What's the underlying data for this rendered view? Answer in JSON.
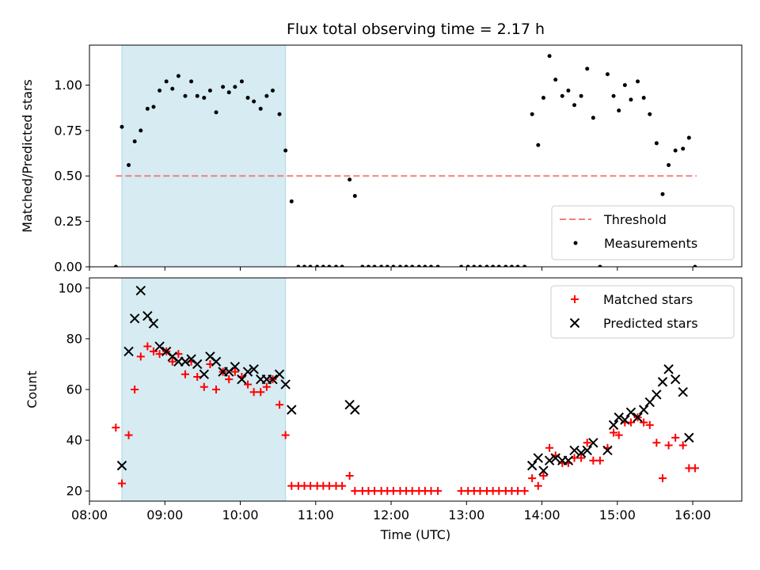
{
  "chart_data": [
    {
      "type": "scatter",
      "title": "Flux total observing time = 2.17 h",
      "xlabel": "",
      "ylabel": "Matched/Predicted stars",
      "xlim": [
        8.0,
        16.65
      ],
      "ylim": [
        0.0,
        1.22
      ],
      "yticks": [
        0.0,
        0.25,
        0.5,
        0.75,
        1.0
      ],
      "ytick_labels": [
        "0.00",
        "0.25",
        "0.50",
        "0.75",
        "1.00"
      ],
      "shaded_region": {
        "x0": 8.43,
        "x1": 10.6,
        "color": "#add8e6"
      },
      "threshold": {
        "name": "Threshold",
        "value": 0.5,
        "x0": 8.35,
        "x1": 16.05,
        "color": "#f08080"
      },
      "series": [
        {
          "name": "Measurements",
          "marker": "dot",
          "color": "#000000",
          "x": [
            8.35,
            8.43,
            8.52,
            8.6,
            8.68,
            8.77,
            8.85,
            8.93,
            9.02,
            9.1,
            9.18,
            9.27,
            9.35,
            9.43,
            9.52,
            9.6,
            9.68,
            9.77,
            9.85,
            9.93,
            10.02,
            10.1,
            10.18,
            10.27,
            10.35,
            10.43,
            10.52,
            10.6,
            10.68,
            10.77,
            10.85,
            10.93,
            11.02,
            11.1,
            11.18,
            11.27,
            11.35,
            11.45,
            11.52,
            11.62,
            11.7,
            11.78,
            11.87,
            11.95,
            12.03,
            12.12,
            12.2,
            12.28,
            12.37,
            12.45,
            12.53,
            12.62,
            12.93,
            13.02,
            13.1,
            13.18,
            13.27,
            13.35,
            13.43,
            13.52,
            13.6,
            13.68,
            13.77,
            13.87,
            13.95,
            14.02,
            14.1,
            14.18,
            14.27,
            14.35,
            14.43,
            14.52,
            14.6,
            14.68,
            14.77,
            14.87,
            14.95,
            15.02,
            15.1,
            15.18,
            15.27,
            15.35,
            15.43,
            15.52,
            15.6,
            15.68,
            15.77,
            15.87,
            15.95,
            16.03
          ],
          "y": [
            0.0,
            0.77,
            0.56,
            0.69,
            0.75,
            0.87,
            0.88,
            0.97,
            1.02,
            0.98,
            1.05,
            0.94,
            1.02,
            0.94,
            0.93,
            0.97,
            0.85,
            0.99,
            0.96,
            0.99,
            1.02,
            0.93,
            0.91,
            0.87,
            0.94,
            0.97,
            0.84,
            0.64,
            0.36,
            0.0,
            0.0,
            0.0,
            0.0,
            0.0,
            0.0,
            0.0,
            0.0,
            0.48,
            0.39,
            0.0,
            0.0,
            0.0,
            0.0,
            0.0,
            0.0,
            0.0,
            0.0,
            0.0,
            0.0,
            0.0,
            0.0,
            0.0,
            0.0,
            0.0,
            0.0,
            0.0,
            0.0,
            0.0,
            0.0,
            0.0,
            0.0,
            0.0,
            0.0,
            0.84,
            0.67,
            0.93,
            1.16,
            1.03,
            0.94,
            0.97,
            0.89,
            0.94,
            1.09,
            0.82,
            0.0,
            1.06,
            0.94,
            0.86,
            1.0,
            0.92,
            1.02,
            0.93,
            0.84,
            0.68,
            0.4,
            0.56,
            0.64,
            0.65,
            0.71,
            0.0
          ]
        }
      ],
      "legend": {
        "position": "lower right",
        "entries": [
          "Threshold",
          "Measurements"
        ]
      }
    },
    {
      "type": "scatter",
      "title": "",
      "xlabel": "Time (UTC)",
      "ylabel": "Count",
      "xlim": [
        8.0,
        16.65
      ],
      "ylim": [
        16,
        104
      ],
      "yticks": [
        20,
        40,
        60,
        80,
        100
      ],
      "ytick_labels": [
        "20",
        "40",
        "60",
        "80",
        "100"
      ],
      "xticks": [
        8,
        9,
        10,
        11,
        12,
        13,
        14,
        15,
        16
      ],
      "xtick_labels": [
        "08:00",
        "09:00",
        "10:00",
        "11:00",
        "12:00",
        "13:00",
        "14:00",
        "15:00",
        "16:00"
      ],
      "shaded_region": {
        "x0": 8.43,
        "x1": 10.6,
        "color": "#add8e6"
      },
      "series": [
        {
          "name": "Matched stars",
          "marker": "plus",
          "color": "#ff0000",
          "x": [
            8.35,
            8.43,
            8.52,
            8.6,
            8.68,
            8.77,
            8.85,
            8.93,
            9.02,
            9.1,
            9.18,
            9.27,
            9.35,
            9.43,
            9.52,
            9.6,
            9.68,
            9.77,
            9.85,
            9.93,
            10.02,
            10.1,
            10.18,
            10.27,
            10.35,
            10.43,
            10.52,
            10.6,
            10.68,
            10.77,
            10.85,
            10.93,
            11.02,
            11.1,
            11.18,
            11.27,
            11.35,
            11.45,
            11.52,
            11.62,
            11.7,
            11.78,
            11.87,
            11.95,
            12.03,
            12.12,
            12.2,
            12.28,
            12.37,
            12.45,
            12.53,
            12.62,
            12.93,
            13.02,
            13.1,
            13.18,
            13.27,
            13.35,
            13.43,
            13.52,
            13.6,
            13.68,
            13.77,
            13.87,
            13.95,
            14.02,
            14.1,
            14.18,
            14.27,
            14.35,
            14.43,
            14.52,
            14.6,
            14.68,
            14.77,
            14.87,
            14.95,
            15.02,
            15.1,
            15.18,
            15.27,
            15.35,
            15.43,
            15.52,
            15.6,
            15.68,
            15.77,
            15.87,
            15.95,
            16.03
          ],
          "y": [
            45,
            23,
            42,
            60,
            73,
            77,
            75,
            74,
            75,
            71,
            74,
            66,
            71,
            65,
            61,
            70,
            60,
            67,
            64,
            67,
            65,
            62,
            59,
            59,
            61,
            64,
            54,
            42,
            22,
            22,
            22,
            22,
            22,
            22,
            22,
            22,
            22,
            26,
            20,
            20,
            20,
            20,
            20,
            20,
            20,
            20,
            20,
            20,
            20,
            20,
            20,
            20,
            20,
            20,
            20,
            20,
            20,
            20,
            20,
            20,
            20,
            20,
            20,
            25,
            22,
            26,
            37,
            34,
            31,
            31,
            33,
            33,
            39,
            32,
            32,
            37,
            43,
            42,
            47,
            47,
            49,
            47,
            46,
            39,
            25,
            38,
            41,
            38,
            29,
            29
          ]
        },
        {
          "name": "Predicted stars",
          "marker": "x",
          "color": "#000000",
          "x": [
            8.43,
            8.52,
            8.6,
            8.68,
            8.77,
            8.85,
            8.93,
            9.02,
            9.1,
            9.18,
            9.27,
            9.35,
            9.43,
            9.52,
            9.6,
            9.68,
            9.77,
            9.85,
            9.93,
            10.02,
            10.1,
            10.18,
            10.27,
            10.35,
            10.43,
            10.52,
            10.6,
            10.68,
            11.45,
            11.52,
            13.87,
            13.95,
            14.02,
            14.1,
            14.18,
            14.27,
            14.35,
            14.43,
            14.52,
            14.6,
            14.68,
            14.87,
            14.95,
            15.02,
            15.1,
            15.18,
            15.27,
            15.35,
            15.43,
            15.52,
            15.6,
            15.68,
            15.77,
            15.87,
            15.95
          ],
          "y": [
            30,
            75,
            88,
            99,
            89,
            86,
            77,
            75,
            73,
            71,
            71,
            72,
            70,
            66,
            73,
            71,
            67,
            67,
            69,
            64,
            67,
            68,
            64,
            64,
            64,
            66,
            62,
            52,
            54,
            52,
            30,
            33,
            28,
            32,
            33,
            32,
            32,
            36,
            35,
            36,
            39,
            36,
            46,
            49,
            48,
            51,
            49,
            52,
            55,
            58,
            63,
            68,
            64,
            59,
            41
          ]
        }
      ],
      "legend": {
        "position": "upper right",
        "entries": [
          "Matched stars",
          "Predicted stars"
        ]
      }
    }
  ]
}
